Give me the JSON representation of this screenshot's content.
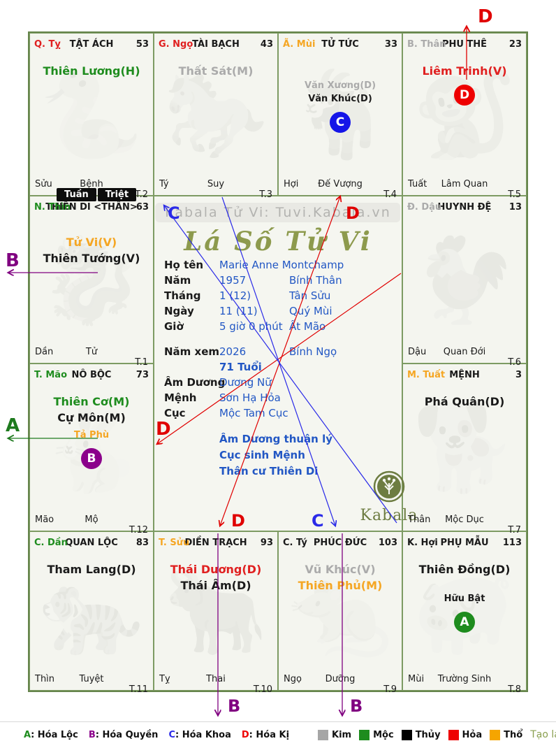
{
  "watermark": "Kabala Tử Vi: Tuvi.Kabala.vn",
  "title": "Lá Số Tử Vi",
  "badges_top": {
    "tuan": "Tuần",
    "triet": "Triệt"
  },
  "info": {
    "rows1": [
      {
        "label": "Họ tên",
        "value": "Marie Anne Montchamp",
        "value2": ""
      },
      {
        "label": "Năm",
        "value": "1957",
        "value2": "Bính Thân"
      },
      {
        "label": "Tháng",
        "value": "1  (12)",
        "value2": "Tân Sửu"
      },
      {
        "label": "Ngày",
        "value": "11  (11)",
        "value2": "Quý Mùi"
      },
      {
        "label": "Giờ",
        "value": "5 giờ 0 phút",
        "value2": "Ất Mão"
      }
    ],
    "rows2": [
      {
        "label": "Năm xem",
        "value": "2026",
        "value2": "Bính Ngọ"
      },
      {
        "label": "",
        "value": "71 Tuổi",
        "value2": "",
        "bold": true
      },
      {
        "label": "Âm Dương",
        "value": "Dương Nữ",
        "value2": ""
      },
      {
        "label": "Mệnh",
        "value": "Sơn Hạ Hỏa",
        "value2": ""
      },
      {
        "label": "Cục",
        "value": "Mộc Tam Cục",
        "value2": ""
      }
    ],
    "notes": [
      "Âm Dương thuận lý",
      "Cục sinh Mệnh",
      "Thân cư Thiên Di"
    ],
    "logo_text": "Kabala"
  },
  "cells": [
    {
      "pos": "r1c1",
      "can": "Q. Tỵ",
      "can_color": "#e02020",
      "palace": "TẬT ÁCH",
      "num": "53",
      "stars": [
        {
          "n": "Thiên Lương(H)",
          "c": "#1e8c1e",
          "s": 16
        }
      ],
      "badge": null,
      "chi": "Sửu",
      "stage": "Bệnh",
      "t": "T.2",
      "zodiac": "🐍"
    },
    {
      "pos": "r1c2",
      "can": "G. Ngọ",
      "can_color": "#e02020",
      "palace": "TÀI BẠCH",
      "num": "43",
      "stars": [
        {
          "n": "Thất Sát(M)",
          "c": "#ababab",
          "s": 16
        }
      ],
      "badge": null,
      "chi": "Tý",
      "stage": "Suy",
      "t": "T.3",
      "zodiac": "🐎"
    },
    {
      "pos": "r1c3",
      "can": "Ã. Mùi",
      "can_color": "#f5a623",
      "palace": "TỬ TỨC",
      "num": "33",
      "stars": [
        {
          "n": "Văn Xương(D)",
          "c": "#ababab",
          "s": 13,
          "gap": 36
        },
        {
          "n": "Văn Khúc(D)",
          "c": "#1a1a1a",
          "s": 13
        }
      ],
      "badge": {
        "l": "C",
        "c": "#1515e8"
      },
      "chi": "Hợi",
      "stage": "Đế Vượng",
      "t": "T.4",
      "zodiac": "🐐"
    },
    {
      "pos": "r1c4",
      "can": "B. Thân",
      "can_color": "#ababab",
      "palace": "PHU THÊ",
      "num": "23",
      "stars": [
        {
          "n": "Liêm Trinh(V)",
          "c": "#e02020",
          "s": 16
        }
      ],
      "badge": {
        "l": "D",
        "c": "#ee0000"
      },
      "chi": "Tuất",
      "stage": "Lâm Quan",
      "t": "T.5",
      "zodiac": "🐒"
    },
    {
      "pos": "r2c1",
      "can": "N. Thìn",
      "can_color": "#1e8c1e",
      "palace": "THIÊN DI <THÂN>",
      "num": "63",
      "stars": [
        {
          "n": "Tử Vi(V)",
          "c": "#f5a623",
          "s": 16,
          "gap": 24
        },
        {
          "n": "Thiên Tướng(V)",
          "c": "#1a1a1a",
          "s": 16
        }
      ],
      "badge": null,
      "tuan_triet": true,
      "chi": "Dần",
      "stage": "Tử",
      "t": "T.1",
      "zodiac": "🐉"
    },
    {
      "pos": "r2c4",
      "can": "Đ. Dậu",
      "can_color": "#ababab",
      "palace": "HUYNH ĐỆ",
      "num": "13",
      "stars": [],
      "badge": null,
      "chi": "Dậu",
      "stage": "Quan Đới",
      "t": "T.6",
      "zodiac": "🐓"
    },
    {
      "pos": "r3c1",
      "can": "T. Mão",
      "can_color": "#1e8c1e",
      "palace": "NÔ BỘC",
      "num": "73",
      "stars": [
        {
          "n": "Thiên Cơ(M)",
          "c": "#1e8c1e",
          "s": 16
        },
        {
          "n": "Cự Môn(M)",
          "c": "#1a1a1a",
          "s": 16
        },
        {
          "n": "Tả Phù",
          "c": "#f5a623",
          "s": 13,
          "gap": 5
        }
      ],
      "badge": {
        "l": "B",
        "c": "#8b008b"
      },
      "chi": "Mão",
      "stage": "Mộ",
      "t": "T.12",
      "zodiac": "🐇"
    },
    {
      "pos": "r3c4",
      "can": "M. Tuất",
      "can_color": "#f5a623",
      "palace": "MỆNH",
      "num": "3",
      "stars": [
        {
          "n": "Phá Quân(D)",
          "c": "#1a1a1a",
          "s": 16
        }
      ],
      "badge": null,
      "chi": "Thân",
      "stage": "Mộc Dục",
      "t": "T.7",
      "zodiac": "🐕"
    },
    {
      "pos": "r4c1",
      "can": "C. Dần",
      "can_color": "#1e8c1e",
      "palace": "QUAN LỘC",
      "num": "83",
      "stars": [
        {
          "n": "Tham Lang(D)",
          "c": "#1a1a1a",
          "s": 16
        }
      ],
      "badge": null,
      "chi": "Thìn",
      "stage": "Tuyệt",
      "t": "T.11",
      "zodiac": "🐅"
    },
    {
      "pos": "r4c2",
      "can": "T. Sửu",
      "can_color": "#f5a623",
      "palace": "ĐIỀN TRẠCH",
      "num": "93",
      "stars": [
        {
          "n": "Thái Dương(D)",
          "c": "#e02020",
          "s": 16
        },
        {
          "n": "Thái Âm(D)",
          "c": "#1a1a1a",
          "s": 16
        }
      ],
      "badge": null,
      "chi": "Tỵ",
      "stage": "Thai",
      "t": "T.10",
      "zodiac": "🐂"
    },
    {
      "pos": "r4c3",
      "can": "C. Tý",
      "can_color": "#1a1a1a",
      "palace": "PHÚC ĐỨC",
      "num": "103",
      "stars": [
        {
          "n": "Vũ Khúc(V)",
          "c": "#ababab",
          "s": 16
        },
        {
          "n": "Thiên Phủ(M)",
          "c": "#f5a623",
          "s": 16
        }
      ],
      "badge": null,
      "chi": "Ngọ",
      "stage": "Dưỡng",
      "t": "T.9",
      "zodiac": "🐀"
    },
    {
      "pos": "r4c4",
      "can": "K. Hợi",
      "can_color": "#1a1a1a",
      "palace": "PHỤ MẪU",
      "num": "113",
      "stars": [
        {
          "n": "Thiên Đồng(D)",
          "c": "#1a1a1a",
          "s": 16
        },
        {
          "n": "Hữu Bật",
          "c": "#1a1a1a",
          "s": 13,
          "gap": 22
        }
      ],
      "badge": {
        "l": "A",
        "c": "#1e8c1e"
      },
      "chi": "Mùi",
      "stage": "Trường Sinh",
      "t": "T.8",
      "zodiac": "🐖"
    }
  ],
  "arrows": {
    "top_d": "D",
    "center_top_c": "C",
    "center_top_d": "D",
    "center_left_d": "D",
    "center_bottom_d": "D",
    "center_bottom_c": "C",
    "bottom_b1": "B",
    "bottom_b2": "B",
    "side_b": "B",
    "side_a": "A"
  },
  "legend": {
    "hoa": [
      {
        "letter": "A",
        "label": ": Hóa Lộc",
        "color": "#1e8c1e"
      },
      {
        "letter": "B",
        "label": ": Hóa Quyền",
        "color": "#8b008b"
      },
      {
        "letter": "C",
        "label": ": Hóa Khoa",
        "color": "#2a2ae8"
      },
      {
        "letter": "D",
        "label": ": Hóa Kị",
        "color": "#ee0000"
      }
    ],
    "elements": [
      {
        "name": "Kim",
        "color": "#a6a6a6"
      },
      {
        "name": "Mộc",
        "color": "#1e8c1e"
      },
      {
        "name": "Thủy",
        "color": "#000000"
      },
      {
        "name": "Hỏa",
        "color": "#ee0000"
      },
      {
        "name": "Thổ",
        "color": "#f5a500"
      }
    ],
    "credit": "Tạo lá số: Tuvi.Kabala.vn"
  },
  "colors": {
    "grid_border": "#7d9b63",
    "info_blue": "#2257c4",
    "title_olive": "#8d9a4d",
    "arrow_red": "#e00000",
    "arrow_blue": "#2a2ae8",
    "arrow_purple": "#800080",
    "arrow_green": "#1e7a1e"
  }
}
